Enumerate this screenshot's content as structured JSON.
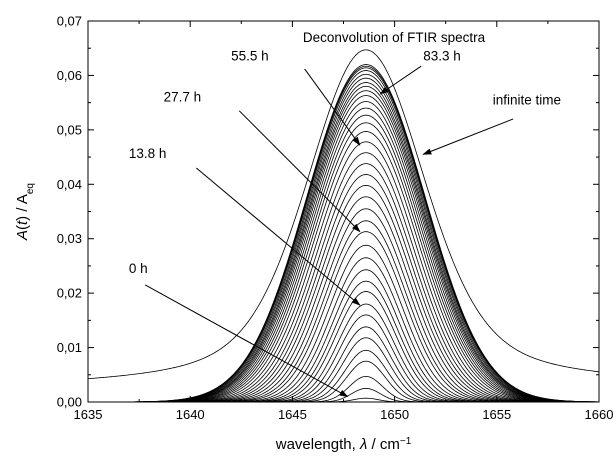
{
  "chart_data": {
    "type": "line",
    "title": "Deconvolution of FTIR spectra",
    "xlabel_prefix": "wavelength, ",
    "xlabel_symbol": "λ",
    "xlabel_unit": " / cm",
    "xlabel_exp": "−1",
    "ylabel_A": "A",
    "ylabel_t": "t",
    "ylabel_mid": " / A",
    "ylabel_sub": "eq",
    "xlim": [
      1635,
      1660
    ],
    "ylim": [
      0,
      0.07
    ],
    "x_ticks": [
      "1635",
      "1640",
      "1645",
      "1650",
      "1655",
      "1660"
    ],
    "y_ticks": [
      "0,00",
      "0,01",
      "0,02",
      "0,03",
      "0,04",
      "0,05",
      "0,06",
      "0,07"
    ],
    "grid": false,
    "peak_center": 1648.6,
    "curve_peaks": [
      0.0007,
      0.0025,
      0.0047,
      0.0075,
      0.0095,
      0.0118,
      0.0138,
      0.016,
      0.018,
      0.0203,
      0.0222,
      0.0243,
      0.0265,
      0.0288,
      0.0313,
      0.0333,
      0.0355,
      0.0377,
      0.0398,
      0.0418,
      0.0438,
      0.0458,
      0.0478,
      0.0497,
      0.0513,
      0.0527,
      0.054,
      0.0552,
      0.0563,
      0.0572,
      0.058,
      0.0587,
      0.0595,
      0.0602,
      0.0609,
      0.0614,
      0.0617,
      0.062
    ],
    "infinite_time_curve": {
      "peak": 0.0647,
      "baseline_left": 0.0022,
      "baseline_right": 0.0027
    },
    "annotations": [
      {
        "text": "0 h",
        "label_x": 1637.0,
        "label_y": 0.0237,
        "arrow_from": [
          1637.8,
          0.0215
        ],
        "arrow_to": [
          1647.7,
          0.001
        ]
      },
      {
        "text": "13.8 h",
        "label_x": 1637.0,
        "label_y": 0.0448,
        "arrow_from": [
          1640.3,
          0.043
        ],
        "arrow_to": [
          1648.3,
          0.0178
        ]
      },
      {
        "text": "27.7 h",
        "label_x": 1638.7,
        "label_y": 0.0552,
        "arrow_from": [
          1642.4,
          0.0535
        ],
        "arrow_to": [
          1648.3,
          0.0313
        ]
      },
      {
        "text": "55.5 h",
        "label_x": 1642.0,
        "label_y": 0.0627,
        "arrow_from": [
          1645.6,
          0.0612
        ],
        "arrow_to": [
          1648.3,
          0.0472
        ]
      },
      {
        "text": "83.3 h",
        "label_x": 1651.4,
        "label_y": 0.0627,
        "arrow_from": [
          1651.3,
          0.0617
        ],
        "arrow_to": [
          1649.3,
          0.0566
        ]
      },
      {
        "text": "infinite time",
        "label_x": 1654.8,
        "label_y": 0.0547,
        "arrow_from": [
          1655.8,
          0.052
        ],
        "arrow_to": [
          1651.4,
          0.0455
        ]
      }
    ]
  }
}
